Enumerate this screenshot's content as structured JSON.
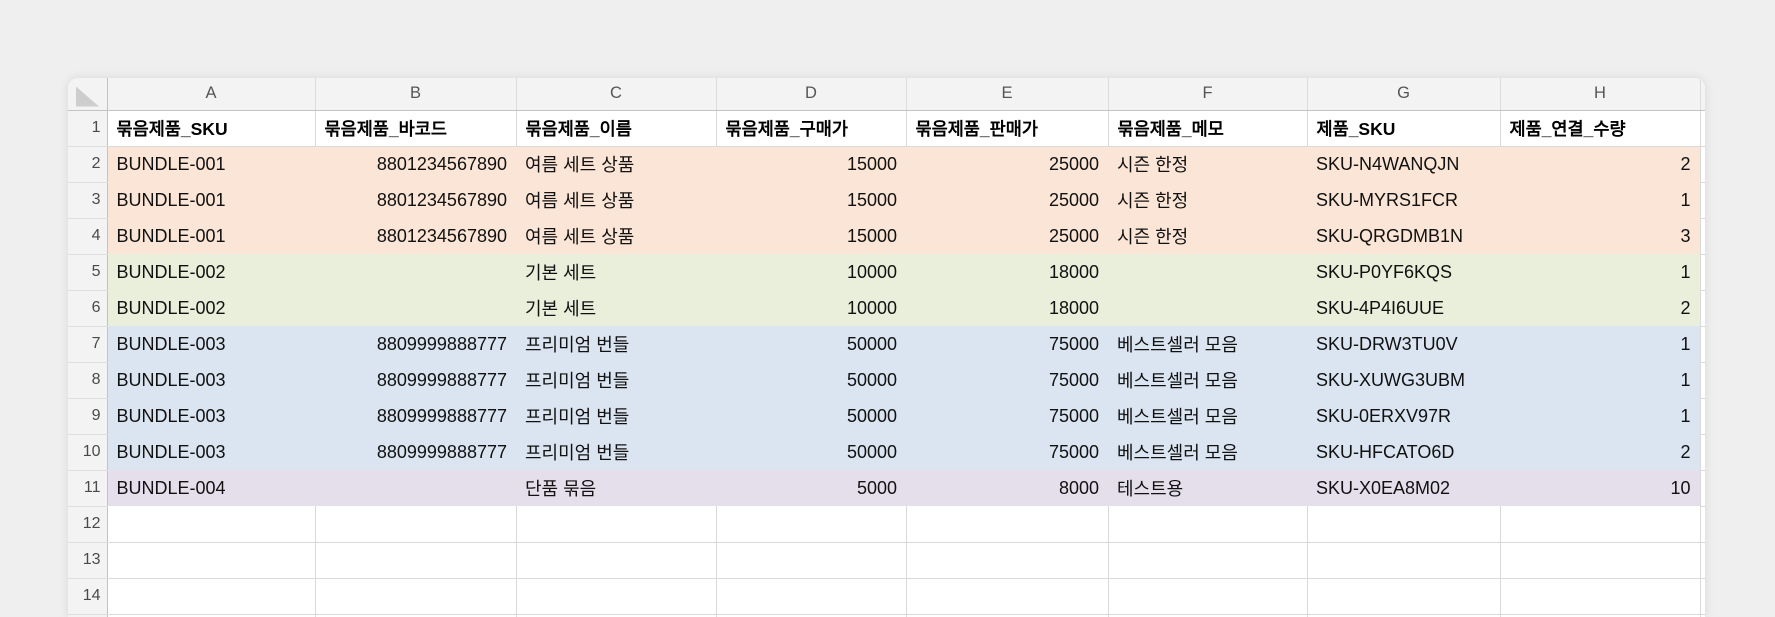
{
  "grid": {
    "select_all_label": "",
    "column_letters": [
      "A",
      "B",
      "C",
      "D",
      "E",
      "F",
      "G",
      "H"
    ],
    "header_row_number": "1",
    "headers": [
      "묶음제품_SKU",
      "묶음제품_바코드",
      "묶음제품_이름",
      "묶음제품_구매가",
      "묶음제품_판매가",
      "묶음제품_메모",
      "제품_SKU",
      "제품_연결_수량"
    ],
    "alignments": [
      "left",
      "right",
      "left",
      "right",
      "right",
      "left",
      "left",
      "right"
    ],
    "rows": [
      {
        "n": "2",
        "fill": "#fbe5d6",
        "cells": [
          "BUNDLE-001",
          "8801234567890",
          "여름 세트 상품",
          "15000",
          "25000",
          "시즌 한정",
          "SKU-N4WANQJN",
          "2"
        ]
      },
      {
        "n": "3",
        "fill": "#fbe5d6",
        "cells": [
          "BUNDLE-001",
          "8801234567890",
          "여름 세트 상품",
          "15000",
          "25000",
          "시즌 한정",
          "SKU-MYRS1FCR",
          "1"
        ]
      },
      {
        "n": "4",
        "fill": "#fbe5d6",
        "cells": [
          "BUNDLE-001",
          "8801234567890",
          "여름 세트 상품",
          "15000",
          "25000",
          "시즌 한정",
          "SKU-QRGDMB1N",
          "3"
        ]
      },
      {
        "n": "5",
        "fill": "#e9efdb",
        "cells": [
          "BUNDLE-002",
          "",
          "기본 세트",
          "10000",
          "18000",
          "",
          "SKU-P0YF6KQS",
          "1"
        ]
      },
      {
        "n": "6",
        "fill": "#e9efdb",
        "cells": [
          "BUNDLE-002",
          "",
          "기본 세트",
          "10000",
          "18000",
          "",
          "SKU-4P4I6UUE",
          "2"
        ]
      },
      {
        "n": "7",
        "fill": "#dbe5f1",
        "cells": [
          "BUNDLE-003",
          "8809999888777",
          "프리미엄 번들",
          "50000",
          "75000",
          "베스트셀러 모음",
          "SKU-DRW3TU0V",
          "1"
        ]
      },
      {
        "n": "8",
        "fill": "#dbe5f1",
        "cells": [
          "BUNDLE-003",
          "8809999888777",
          "프리미엄 번들",
          "50000",
          "75000",
          "베스트셀러 모음",
          "SKU-XUWG3UBM",
          "1"
        ]
      },
      {
        "n": "9",
        "fill": "#dbe5f1",
        "cells": [
          "BUNDLE-003",
          "8809999888777",
          "프리미엄 번들",
          "50000",
          "75000",
          "베스트셀러 모음",
          "SKU-0ERXV97R",
          "1"
        ]
      },
      {
        "n": "10",
        "fill": "#dbe5f1",
        "cells": [
          "BUNDLE-003",
          "8809999888777",
          "프리미엄 번들",
          "50000",
          "75000",
          "베스트셀러 모음",
          "SKU-HFCATO6D",
          "2"
        ]
      },
      {
        "n": "11",
        "fill": "#e5dfec",
        "cells": [
          "BUNDLE-004",
          "",
          "단품 묶음",
          "5000",
          "8000",
          "테스트용",
          "SKU-X0EA8M02",
          "10"
        ]
      }
    ],
    "empty_rows": [
      "12",
      "13",
      "14"
    ],
    "group_fills": {
      "bundle_001": "#fbe5d6",
      "bundle_002": "#e9efdb",
      "bundle_003": "#dbe5f1",
      "bundle_004": "#e5dfec"
    }
  }
}
